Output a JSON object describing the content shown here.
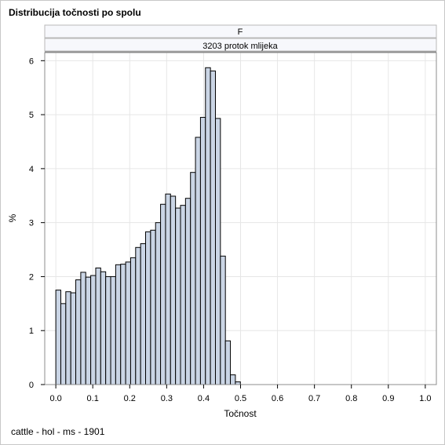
{
  "title": "Distribucija točnosti po spolu",
  "footnote": "cattle - hol - ms - 1901",
  "panel": {
    "header1": "F",
    "header2": "3203 protok mlijeka"
  },
  "colors": {
    "bar_fill": "#cad5e5",
    "bar_stroke": "#000000",
    "grid": "#e6e6e6",
    "header_fill": "#f7f8fc",
    "border": "#8c8c8c"
  },
  "chart_data": {
    "type": "bar",
    "subtype": "histogram",
    "xlabel": "Točnost",
    "ylabel": "%",
    "xlim": [
      -0.03,
      1.03
    ],
    "ylim": [
      0,
      6.15
    ],
    "xticks": [
      0.0,
      0.1,
      0.2,
      0.3,
      0.4,
      0.5,
      0.6,
      0.7,
      0.8,
      0.9,
      1.0
    ],
    "xtick_labels": [
      "0.0",
      "0.1",
      "0.2",
      "0.3",
      "0.4",
      "0.5",
      "0.6",
      "0.7",
      "0.8",
      "0.9",
      "1.0"
    ],
    "yticks": [
      0,
      1,
      2,
      3,
      4,
      5,
      6
    ],
    "ytick_labels": [
      "0",
      "1",
      "2",
      "3",
      "4",
      "5",
      "6"
    ],
    "grid": true,
    "bin_width": 0.0135,
    "bin_start": 0.0,
    "values": [
      1.75,
      1.5,
      1.72,
      1.7,
      1.94,
      2.08,
      1.99,
      2.02,
      2.16,
      2.09,
      2.0,
      2.0,
      2.22,
      2.23,
      2.27,
      2.35,
      2.54,
      2.61,
      2.83,
      2.86,
      3.0,
      3.34,
      3.53,
      3.49,
      3.27,
      3.32,
      3.45,
      3.93,
      4.58,
      4.95,
      5.87,
      5.81,
      4.93,
      2.38,
      0.81,
      0.18,
      0.05
    ]
  }
}
